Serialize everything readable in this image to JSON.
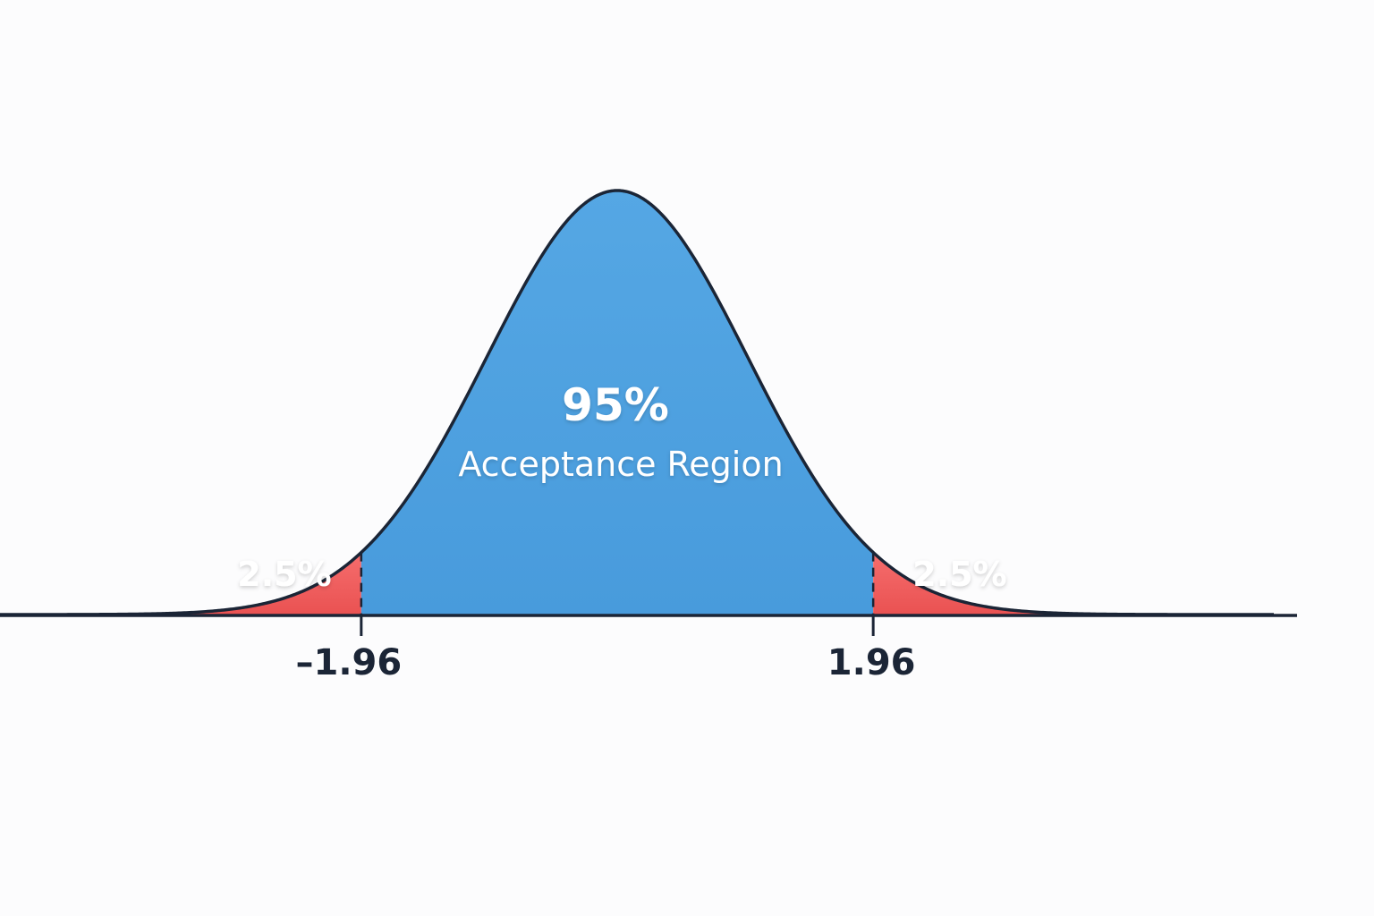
{
  "chart_data": {
    "type": "area",
    "distribution": "standard normal",
    "xlim": [
      -3.6,
      3.6
    ],
    "critical_values": [
      -1.96,
      1.96
    ],
    "regions": [
      {
        "name": "left_tail",
        "from": -3.6,
        "to": -1.96,
        "percent": "2.5%",
        "color": "#ee5656"
      },
      {
        "name": "acceptance",
        "from": -1.96,
        "to": 1.96,
        "percent": "95%",
        "label": "Acceptance Region",
        "color": "#4d9fdf"
      },
      {
        "name": "right_tail",
        "from": 1.96,
        "to": 3.6,
        "percent": "2.5%",
        "color": "#ee5656"
      }
    ],
    "tick_labels": [
      "–1.96",
      "1.96"
    ],
    "curve_color": "#1b2536",
    "axis_color": "#1b2536",
    "grid": false,
    "legend": "none"
  }
}
